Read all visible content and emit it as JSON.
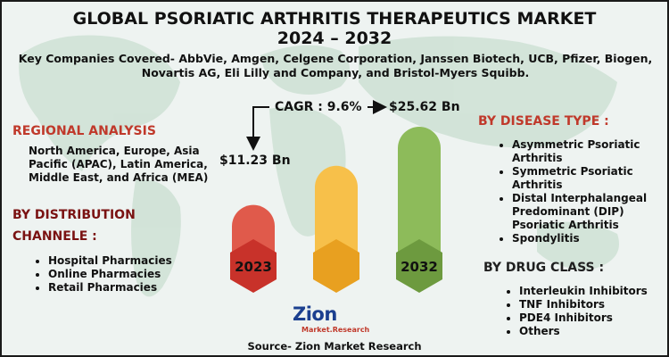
{
  "header": {
    "title_line1": "GLOBAL PSORIATIC ARTHRITIS THERAPEUTICS MARKET",
    "title_line2": "2024 – 2032",
    "key_companies": "Key Companies Covered- AbbVie, Amgen, Celgene Corporation, Janssen Biotech, UCB, Pfizer, Biogen, Novartis AG, Eli Lilly and Company, and Bristol-Myers Squibb."
  },
  "regional": {
    "heading": "REGIONAL ANALYSIS",
    "text": "North America, Europe, Asia Pacific (APAC), Latin America, Middle East, and Africa (MEA)"
  },
  "distribution": {
    "heading_line1": "BY DISTRIBUTION",
    "heading_line2": "CHANNELE :",
    "items": [
      "Hospital Pharmacies",
      "Online Pharmacies",
      "Retail Pharmacies"
    ]
  },
  "disease_type": {
    "heading": "BY DISEASE TYPE :",
    "items": [
      "Asymmetric Psoriatic Arthritis",
      "Symmetric Psoriatic Arthritis",
      "Distal Interphalangeal Predominant (DIP) Psoriatic Arthritis",
      "Spondylitis"
    ]
  },
  "drug_class": {
    "heading": "BY DRUG CLASS :",
    "items": [
      "Interleukin Inhibitors",
      "TNF Inhibitors",
      "PDE4 Inhibitors",
      "Others"
    ]
  },
  "chart_data": {
    "type": "bar",
    "categories": [
      "2023",
      "",
      "2032"
    ],
    "values": [
      11.23,
      null,
      25.62
    ],
    "value_labels": [
      "$11.23 Bn",
      "",
      "$25.62 Bn"
    ],
    "cagr_label": "CAGR : 9.6%",
    "bar_colors": [
      "#e05a4b",
      "#f7c04a",
      "#8dbb5a"
    ],
    "bar_dark_colors": [
      "#c8322a",
      "#e8a020",
      "#6d9a3f"
    ]
  },
  "logo": {
    "main": "Zion",
    "sub": "Market.Research"
  },
  "source": "Source- Zion Market Research",
  "colors": {
    "accent_red": "#c0392b",
    "heading_maroon": "#7a1212",
    "logo_blue": "#1b3f8f"
  }
}
